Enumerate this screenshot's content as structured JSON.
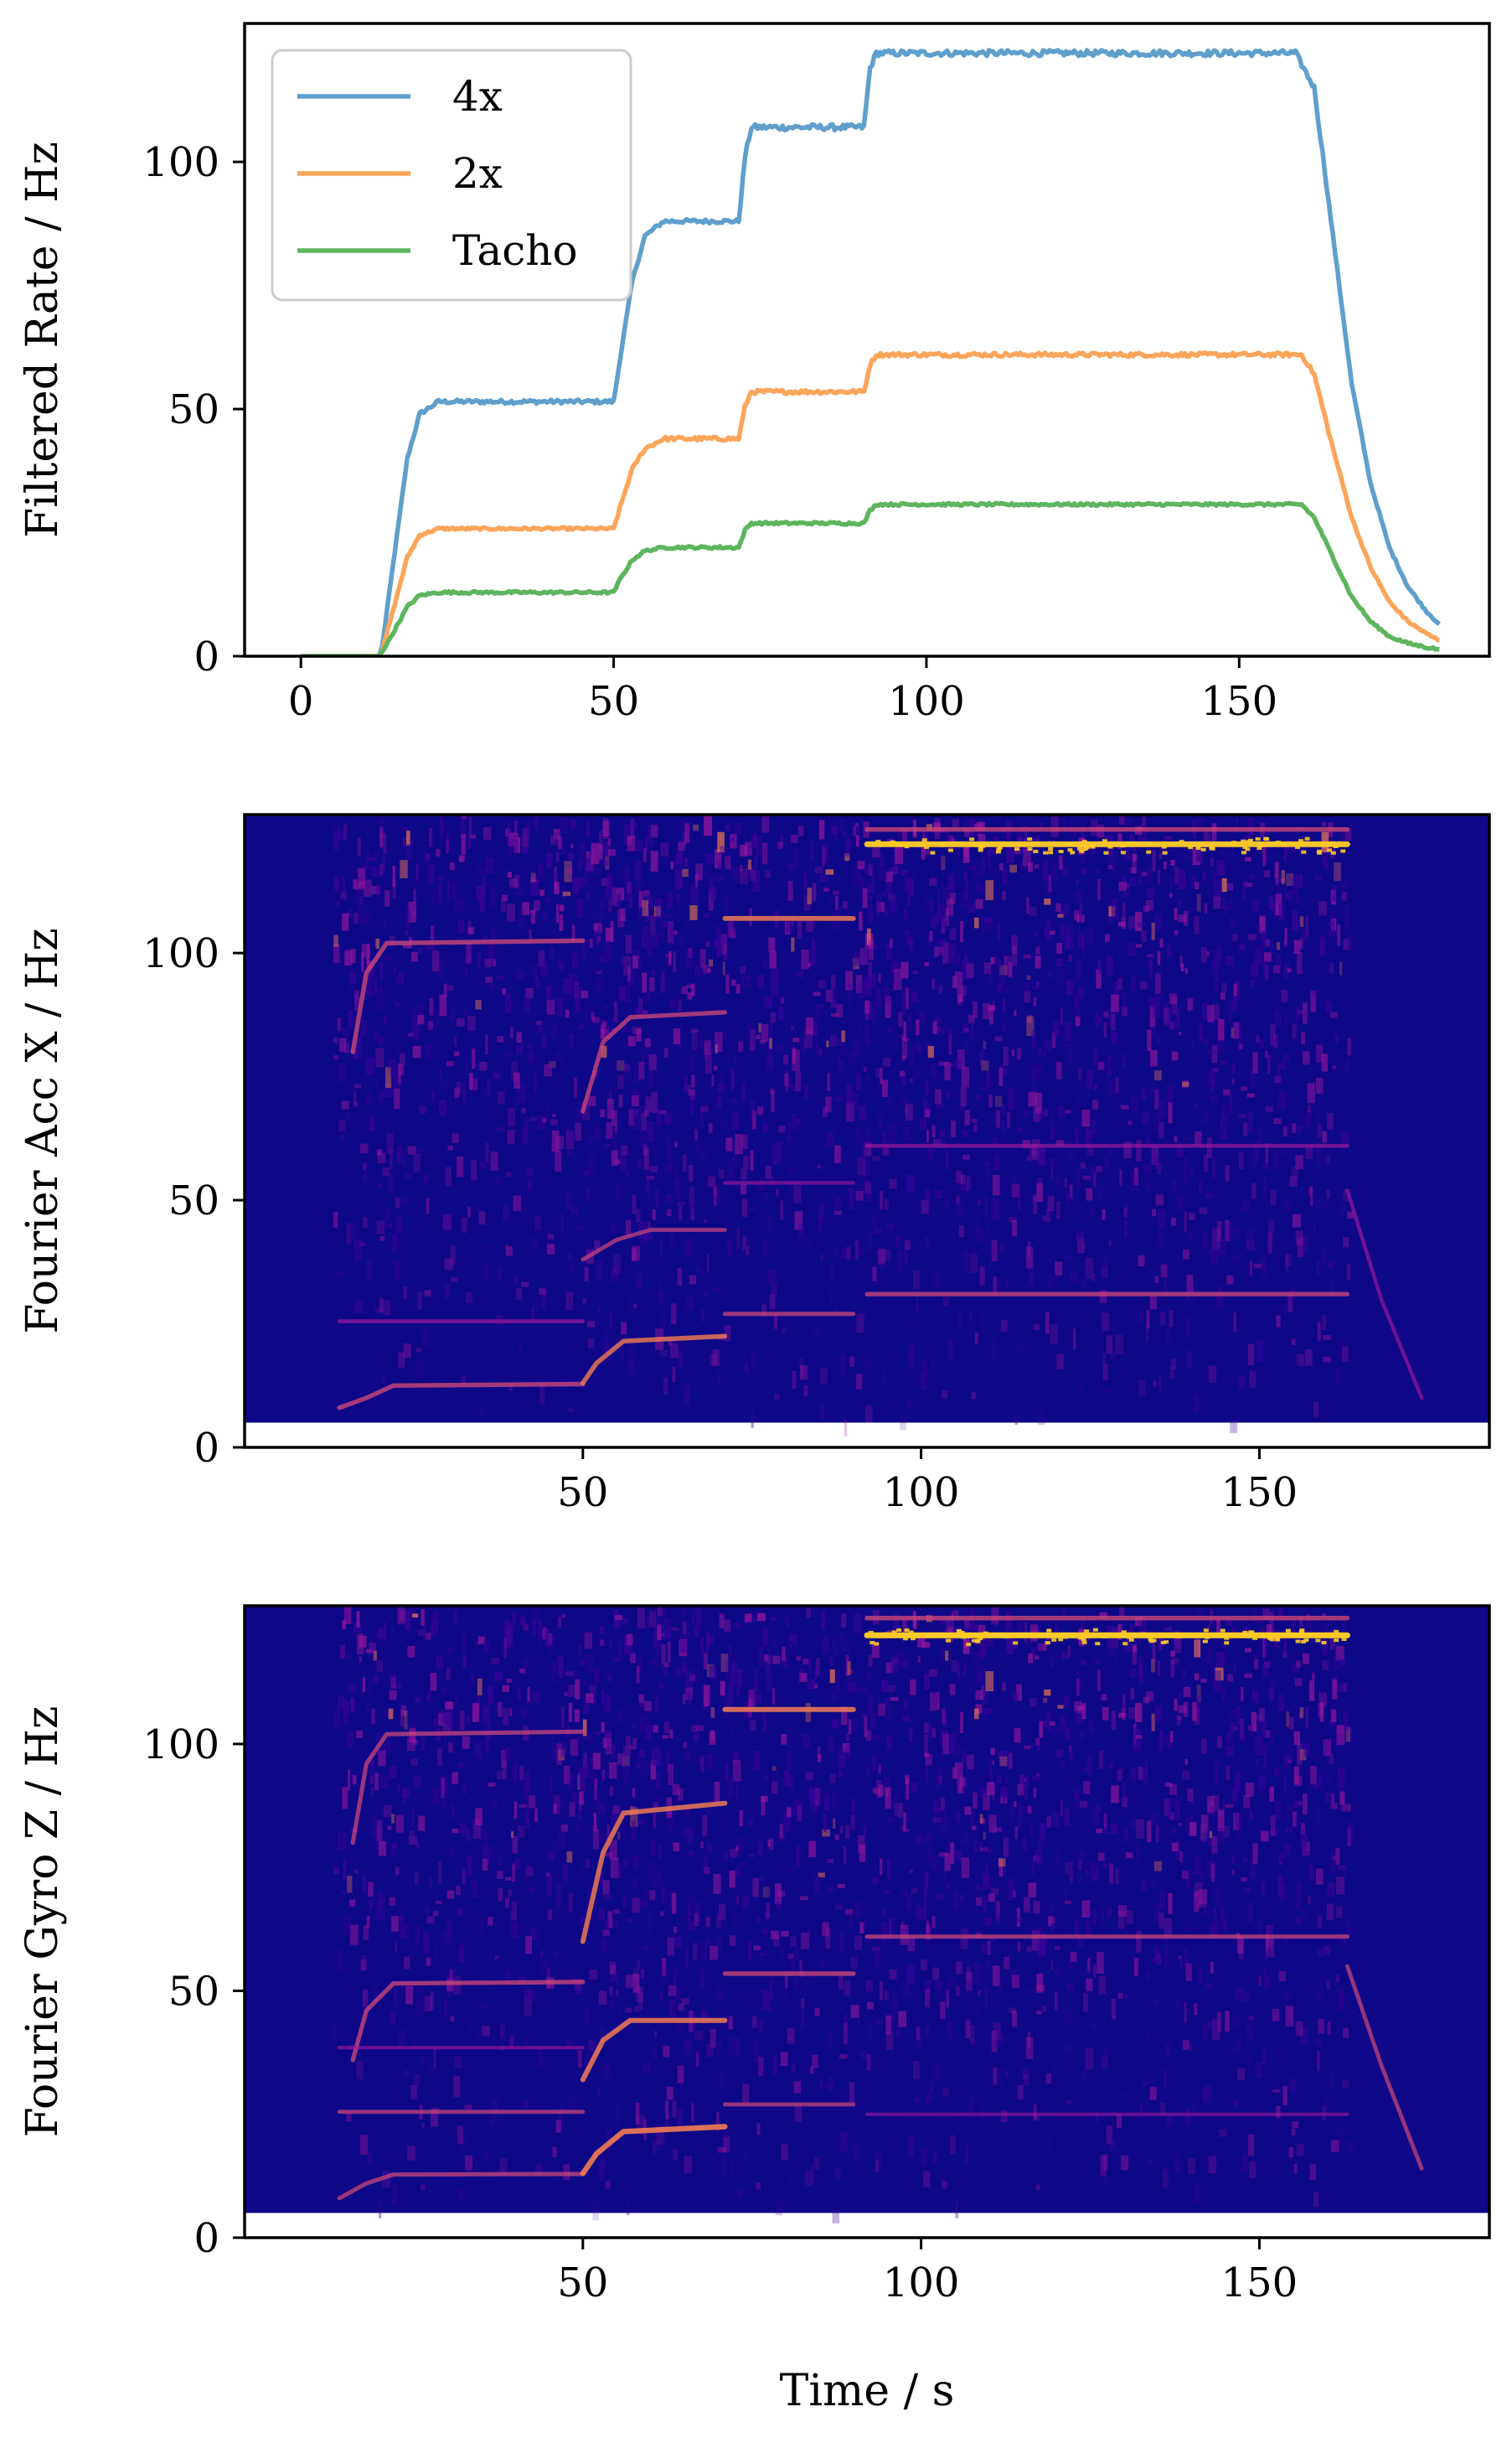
{
  "chart_data": [
    {
      "type": "line",
      "ylabel": "Filtered Rate / Hz",
      "xlabel": "",
      "xlim": [
        -9,
        190
      ],
      "ylim": [
        0,
        128
      ],
      "xticks": [
        0,
        50,
        100,
        150
      ],
      "yticks": [
        0,
        50,
        100
      ],
      "legend": "top-left",
      "grid": false,
      "series": [
        {
          "name": "4x",
          "color": "#5f9fcc",
          "points": [
            [
              0,
              0
            ],
            [
              12.5,
              0
            ],
            [
              13,
              2
            ],
            [
              17,
              40
            ],
            [
              19,
              49
            ],
            [
              22,
              51.5
            ],
            [
              50,
              51.5
            ],
            [
              51,
              60
            ],
            [
              53,
              76
            ],
            [
              55,
              85
            ],
            [
              58,
              88
            ],
            [
              70,
              88
            ],
            [
              71,
              101
            ],
            [
              72,
              107
            ],
            [
              90,
              107
            ],
            [
              91,
              119
            ],
            [
              92,
              122
            ],
            [
              159,
              122
            ],
            [
              162,
              115
            ],
            [
              165,
              85
            ],
            [
              168,
              55
            ],
            [
              171,
              35
            ],
            [
              174,
              22
            ],
            [
              177,
              14
            ],
            [
              180,
              9
            ],
            [
              182,
              6.5
            ]
          ]
        },
        {
          "name": "2x",
          "color": "#fba55b",
          "points": [
            [
              0,
              0
            ],
            [
              12.5,
              0
            ],
            [
              13,
              1
            ],
            [
              17,
              20
            ],
            [
              19,
              24.5
            ],
            [
              22,
              25.8
            ],
            [
              50,
              25.8
            ],
            [
              51,
              30
            ],
            [
              53,
              38
            ],
            [
              55,
              42
            ],
            [
              58,
              44
            ],
            [
              70,
              44
            ],
            [
              71,
              50.5
            ],
            [
              72,
              53.5
            ],
            [
              90,
              53.5
            ],
            [
              91,
              59
            ],
            [
              92,
              61
            ],
            [
              160,
              61
            ],
            [
              162,
              57
            ],
            [
              165,
              42
            ],
            [
              168,
              28
            ],
            [
              171,
              18
            ],
            [
              174,
              11
            ],
            [
              177,
              7
            ],
            [
              180,
              4.5
            ],
            [
              182,
              3.2
            ]
          ]
        },
        {
          "name": "Tacho",
          "color": "#5db55d",
          "points": [
            [
              0,
              0
            ],
            [
              12.5,
              0
            ],
            [
              14,
              3
            ],
            [
              17,
              10
            ],
            [
              19,
              12.3
            ],
            [
              22,
              12.9
            ],
            [
              50,
              12.9
            ],
            [
              51,
              15.5
            ],
            [
              53,
              19.5
            ],
            [
              55,
              21.3
            ],
            [
              58,
              22
            ],
            [
              70,
              22
            ],
            [
              71,
              25.5
            ],
            [
              72,
              26.9
            ],
            [
              90,
              26.9
            ],
            [
              91,
              29.5
            ],
            [
              92,
              30.7
            ],
            [
              160,
              30.7
            ],
            [
              162,
              28
            ],
            [
              165,
              20
            ],
            [
              168,
              12
            ],
            [
              171,
              7
            ],
            [
              174,
              4
            ],
            [
              177,
              2.6
            ],
            [
              180,
              1.8
            ],
            [
              182,
              1.4
            ]
          ]
        }
      ]
    },
    {
      "type": "heatmap",
      "ylabel": "Fourier Acc X / Hz",
      "xlabel": "",
      "xlim": [
        0,
        184
      ],
      "ylim": [
        0,
        128
      ],
      "xticks": [
        50,
        100,
        150
      ],
      "yticks": [
        0,
        50,
        100
      ],
      "colormap": "plasma",
      "colors": {
        "background": "#0e0787",
        "low": "#3a049a",
        "mid": "#9c179e",
        "high": "#ed7953",
        "peak": "#fdca26"
      },
      "noise_regions": [
        [
          13,
          50,
          0.5
        ],
        [
          50,
          71,
          0.7
        ],
        [
          71,
          92,
          0.55
        ],
        [
          92,
          163,
          0.6
        ]
      ],
      "lines": [
        {
          "x": [
            14,
            18,
            22,
            50
          ],
          "y": [
            8,
            10,
            12.5,
            12.8
          ],
          "intensity": 0.6
        },
        {
          "x": [
            14,
            50
          ],
          "y": [
            25.5,
            25.5
          ],
          "intensity": 0.4
        },
        {
          "x": [
            50,
            52,
            56,
            71
          ],
          "y": [
            13,
            17,
            21.5,
            22.5
          ],
          "intensity": 0.65
        },
        {
          "x": [
            71,
            90
          ],
          "y": [
            27,
            27
          ],
          "intensity": 0.5
        },
        {
          "x": [
            92,
            163
          ],
          "y": [
            31,
            31
          ],
          "intensity": 0.55
        },
        {
          "x": [
            50,
            55,
            60,
            71
          ],
          "y": [
            38,
            42,
            44,
            44
          ],
          "intensity": 0.45
        },
        {
          "x": [
            71,
            90
          ],
          "y": [
            53.5,
            53.5
          ],
          "intensity": 0.3
        },
        {
          "x": [
            92,
            163
          ],
          "y": [
            61,
            61
          ],
          "intensity": 0.4
        },
        {
          "x": [
            16,
            18,
            21,
            50
          ],
          "y": [
            80,
            96,
            102,
            102.5
          ],
          "intensity": 0.6
        },
        {
          "x": [
            50,
            53,
            57,
            71
          ],
          "y": [
            68,
            82,
            87,
            88
          ],
          "intensity": 0.55
        },
        {
          "x": [
            71,
            90
          ],
          "y": [
            107,
            107
          ],
          "intensity": 0.7
        },
        {
          "x": [
            92,
            163
          ],
          "y": [
            122,
            122
          ],
          "intensity": 0.95
        },
        {
          "x": [
            92,
            163
          ],
          "y": [
            125,
            125
          ],
          "intensity": 0.6
        },
        {
          "x": [
            163,
            168,
            174
          ],
          "y": [
            52,
            30,
            10
          ],
          "intensity": 0.35
        }
      ]
    },
    {
      "type": "heatmap",
      "ylabel": "Fourier Gyro Z / Hz",
      "xlabel": "Time / s",
      "xlim": [
        0,
        184
      ],
      "ylim": [
        0,
        128
      ],
      "xticks": [
        50,
        100,
        150
      ],
      "yticks": [
        0,
        50,
        100
      ],
      "colormap": "plasma",
      "colors": {
        "background": "#0e0787",
        "low": "#3a049a",
        "mid": "#9c179e",
        "high": "#ed7953",
        "peak": "#fdca26"
      },
      "noise_regions": [
        [
          13,
          50,
          0.45
        ],
        [
          50,
          71,
          0.6
        ],
        [
          71,
          92,
          0.5
        ],
        [
          92,
          163,
          0.55
        ]
      ],
      "lines": [
        {
          "x": [
            14,
            18,
            22,
            50
          ],
          "y": [
            8,
            11,
            12.8,
            12.9
          ],
          "intensity": 0.5
        },
        {
          "x": [
            14,
            50
          ],
          "y": [
            25.5,
            25.5
          ],
          "intensity": 0.45
        },
        {
          "x": [
            50,
            52,
            56,
            71
          ],
          "y": [
            13,
            17,
            21.5,
            22.5
          ],
          "intensity": 0.85
        },
        {
          "x": [
            71,
            90
          ],
          "y": [
            27,
            27
          ],
          "intensity": 0.45
        },
        {
          "x": [
            92,
            163
          ],
          "y": [
            25,
            25
          ],
          "intensity": 0.25
        },
        {
          "x": [
            16,
            18,
            22,
            50
          ],
          "y": [
            36,
            46,
            51.5,
            51.8
          ],
          "intensity": 0.55
        },
        {
          "x": [
            50,
            53,
            57,
            71
          ],
          "y": [
            32,
            40,
            44,
            44
          ],
          "intensity": 0.75
        },
        {
          "x": [
            71,
            90
          ],
          "y": [
            53.5,
            53.5
          ],
          "intensity": 0.6
        },
        {
          "x": [
            92,
            163
          ],
          "y": [
            61,
            61
          ],
          "intensity": 0.5
        },
        {
          "x": [
            14,
            50
          ],
          "y": [
            38.5,
            38.5
          ],
          "intensity": 0.3
        },
        {
          "x": [
            16,
            18,
            21,
            50
          ],
          "y": [
            80,
            96,
            102,
            102.5
          ],
          "intensity": 0.5
        },
        {
          "x": [
            50,
            53,
            56,
            71
          ],
          "y": [
            60,
            78,
            86,
            88
          ],
          "intensity": 0.7
        },
        {
          "x": [
            71,
            90
          ],
          "y": [
            107,
            107
          ],
          "intensity": 0.75
        },
        {
          "x": [
            92,
            163
          ],
          "y": [
            122,
            122
          ],
          "intensity": 1.0
        },
        {
          "x": [
            92,
            163
          ],
          "y": [
            125.5,
            125.5
          ],
          "intensity": 0.6
        },
        {
          "x": [
            163,
            168,
            174
          ],
          "y": [
            55,
            35,
            14
          ],
          "intensity": 0.45
        }
      ]
    }
  ]
}
